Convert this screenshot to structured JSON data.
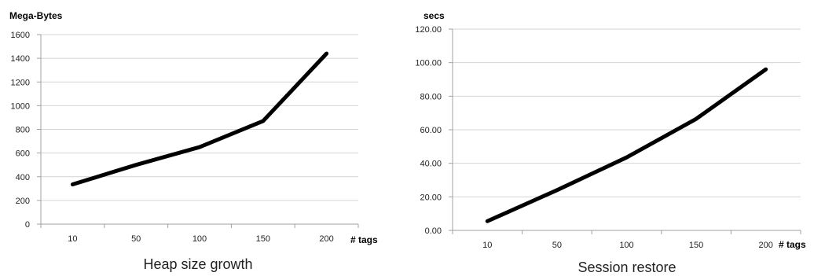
{
  "chart_data": [
    {
      "type": "line",
      "title": "Heap size growth",
      "ylabel": "Mega-Bytes",
      "xlabel": "# tags",
      "categories": [
        "10",
        "50",
        "100",
        "150",
        "200"
      ],
      "series": [
        {
          "values": [
            335,
            500,
            650,
            870,
            1440
          ]
        }
      ],
      "ylim": [
        0,
        1600
      ],
      "yticks": [
        "0",
        "200",
        "400",
        "600",
        "800",
        "1000",
        "1200",
        "1400",
        "1600"
      ],
      "grid": true
    },
    {
      "type": "line",
      "title": "Session restore",
      "ylabel": "secs",
      "xlabel": "# tags",
      "categories": [
        "10",
        "50",
        "100",
        "150",
        "200"
      ],
      "series": [
        {
          "values": [
            5.5,
            24,
            43.5,
            66.5,
            96
          ]
        }
      ],
      "ylim": [
        0,
        120
      ],
      "yticks": [
        "0.00",
        "20.00",
        "40.00",
        "60.00",
        "80.00",
        "100.00",
        "120.00"
      ],
      "grid": true
    }
  ]
}
